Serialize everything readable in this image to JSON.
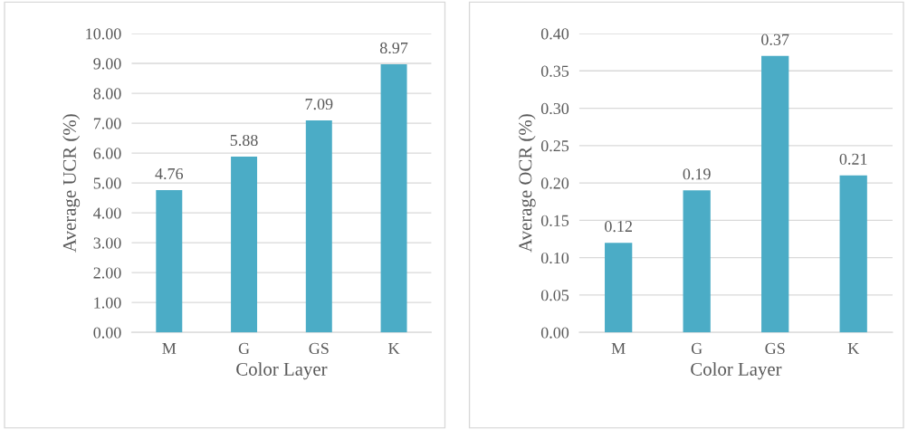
{
  "chart_data": [
    {
      "type": "bar",
      "categories": [
        "M",
        "G",
        "GS",
        "K"
      ],
      "values": [
        4.76,
        5.88,
        7.09,
        8.97
      ],
      "color": "#4bacc6",
      "xlabel": "Color Layer",
      "ylabel": "Average UCR (%)",
      "ylim": [
        0,
        10
      ],
      "yticks": [
        {
          "value": 0,
          "label": "0.00"
        },
        {
          "value": 1,
          "label": "1.00"
        },
        {
          "value": 2,
          "label": "2.00"
        },
        {
          "value": 3,
          "label": "3.00"
        },
        {
          "value": 4,
          "label": "4.00"
        },
        {
          "value": 5,
          "label": "5.00"
        },
        {
          "value": 6,
          "label": "6.00"
        },
        {
          "value": 7,
          "label": "7.00"
        },
        {
          "value": 8,
          "label": "8.00"
        },
        {
          "value": 9,
          "label": "9.00"
        },
        {
          "value": 10,
          "label": "10.00"
        }
      ],
      "grid": "y",
      "data_labels": true
    },
    {
      "type": "bar",
      "categories": [
        "M",
        "G",
        "GS",
        "K"
      ],
      "values": [
        0.12,
        0.19,
        0.37,
        0.21
      ],
      "color": "#4bacc6",
      "xlabel": "Color Layer",
      "ylabel": "Average OCR (%)",
      "ylim": [
        0,
        0.4
      ],
      "yticks": [
        {
          "value": 0,
          "label": "0.00"
        },
        {
          "value": 0.05,
          "label": "0.05"
        },
        {
          "value": 0.1,
          "label": "0.10"
        },
        {
          "value": 0.15,
          "label": "0.15"
        },
        {
          "value": 0.2,
          "label": "0.20"
        },
        {
          "value": 0.25,
          "label": "0.25"
        },
        {
          "value": 0.3,
          "label": "0.30"
        },
        {
          "value": 0.35,
          "label": "0.35"
        },
        {
          "value": 0.4,
          "label": "0.40"
        }
      ],
      "grid": "y",
      "data_labels": true
    }
  ]
}
